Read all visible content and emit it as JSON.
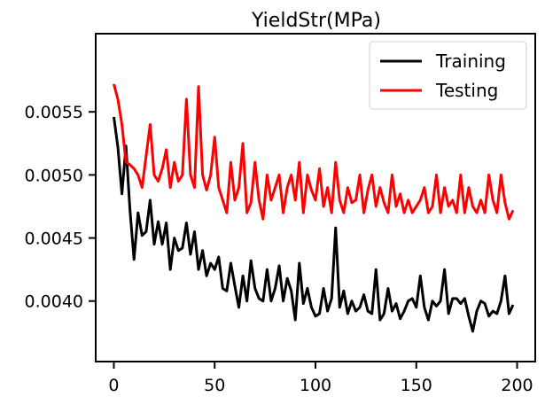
{
  "chart_data": {
    "type": "line",
    "title": "YieldStr(MPa)",
    "xlabel": "",
    "ylabel": "",
    "xlim": [
      -9,
      209
    ],
    "ylim": [
      0.00352,
      0.00612
    ],
    "xticks": [
      0,
      50,
      100,
      150,
      200
    ],
    "xtick_labels": [
      "0",
      "50",
      "100",
      "150",
      "200"
    ],
    "yticks": [
      0.004,
      0.0045,
      0.005,
      0.0055
    ],
    "ytick_labels": [
      "0.0040",
      "0.0045",
      "0.0050",
      "0.0055"
    ],
    "grid": false,
    "legend_position": "top-right",
    "series": [
      {
        "name": "Training",
        "color": "#000000",
        "x": [
          0,
          2,
          4,
          6,
          8,
          10,
          12,
          14,
          16,
          18,
          20,
          22,
          24,
          26,
          28,
          30,
          32,
          34,
          36,
          38,
          40,
          42,
          44,
          46,
          48,
          50,
          52,
          54,
          56,
          58,
          60,
          62,
          64,
          66,
          68,
          70,
          72,
          74,
          76,
          78,
          80,
          82,
          84,
          86,
          88,
          90,
          92,
          94,
          96,
          98,
          100,
          102,
          104,
          106,
          108,
          110,
          112,
          114,
          116,
          118,
          120,
          122,
          124,
          126,
          128,
          130,
          132,
          134,
          136,
          138,
          140,
          142,
          144,
          146,
          148,
          150,
          152,
          154,
          156,
          158,
          160,
          162,
          164,
          166,
          168,
          170,
          172,
          174,
          176,
          178,
          180,
          182,
          184,
          186,
          188,
          190,
          192,
          194,
          196,
          198
        ],
        "y": [
          0.00546,
          0.00522,
          0.00485,
          0.00523,
          0.00472,
          0.00433,
          0.0047,
          0.00452,
          0.00455,
          0.0048,
          0.00445,
          0.00463,
          0.00445,
          0.00462,
          0.00425,
          0.0045,
          0.0044,
          0.00442,
          0.00462,
          0.00437,
          0.00455,
          0.00425,
          0.0044,
          0.0042,
          0.0043,
          0.00425,
          0.00435,
          0.0041,
          0.00408,
          0.0043,
          0.00412,
          0.00395,
          0.0042,
          0.004,
          0.00432,
          0.0041,
          0.00402,
          0.004,
          0.00425,
          0.004,
          0.0041,
          0.00428,
          0.004,
          0.00418,
          0.00408,
          0.00385,
          0.0043,
          0.00398,
          0.0041,
          0.00395,
          0.00388,
          0.0039,
          0.0041,
          0.00392,
          0.00402,
          0.00458,
          0.00395,
          0.00408,
          0.0039,
          0.004,
          0.00392,
          0.00395,
          0.00405,
          0.00392,
          0.0039,
          0.00425,
          0.00385,
          0.0039,
          0.0041,
          0.00392,
          0.00398,
          0.00386,
          0.00392,
          0.004,
          0.00402,
          0.00395,
          0.0042,
          0.00395,
          0.00385,
          0.004,
          0.00396,
          0.004,
          0.00425,
          0.0039,
          0.00402,
          0.00402,
          0.00398,
          0.00402,
          0.00388,
          0.00376,
          0.00392,
          0.004,
          0.00398,
          0.00388,
          0.00392,
          0.0039,
          0.004,
          0.0042,
          0.0039,
          0.00397
        ]
      },
      {
        "name": "Testing",
        "color": "#ff0000",
        "x": [
          0,
          2,
          4,
          6,
          8,
          10,
          12,
          14,
          16,
          18,
          20,
          22,
          24,
          26,
          28,
          30,
          32,
          34,
          36,
          38,
          40,
          42,
          44,
          46,
          48,
          50,
          52,
          54,
          56,
          58,
          60,
          62,
          64,
          66,
          68,
          70,
          72,
          74,
          76,
          78,
          80,
          82,
          84,
          86,
          88,
          90,
          92,
          94,
          96,
          98,
          100,
          102,
          104,
          106,
          108,
          110,
          112,
          114,
          116,
          118,
          120,
          122,
          124,
          126,
          128,
          130,
          132,
          134,
          136,
          138,
          140,
          142,
          144,
          146,
          148,
          150,
          152,
          154,
          156,
          158,
          160,
          162,
          164,
          166,
          168,
          170,
          172,
          174,
          176,
          178,
          180,
          182,
          184,
          186,
          188,
          190,
          192,
          194,
          196,
          198
        ],
        "y": [
          0.00572,
          0.0056,
          0.0054,
          0.0051,
          0.00508,
          0.00505,
          0.005,
          0.0049,
          0.00515,
          0.0054,
          0.005,
          0.00495,
          0.00505,
          0.0052,
          0.0049,
          0.0051,
          0.00495,
          0.005,
          0.0056,
          0.005,
          0.0049,
          0.0057,
          0.005,
          0.00488,
          0.005,
          0.0053,
          0.0049,
          0.0048,
          0.0047,
          0.0051,
          0.0048,
          0.0049,
          0.00525,
          0.0047,
          0.00478,
          0.0051,
          0.0048,
          0.00465,
          0.005,
          0.0048,
          0.0049,
          0.005,
          0.0047,
          0.0049,
          0.005,
          0.0048,
          0.0051,
          0.0047,
          0.005,
          0.00488,
          0.0048,
          0.00505,
          0.00475,
          0.0049,
          0.0047,
          0.0051,
          0.0048,
          0.0047,
          0.0049,
          0.00478,
          0.0048,
          0.005,
          0.0047,
          0.00488,
          0.005,
          0.00475,
          0.0049,
          0.00478,
          0.0047,
          0.005,
          0.00475,
          0.00485,
          0.0047,
          0.0048,
          0.0047,
          0.00475,
          0.0048,
          0.0049,
          0.0047,
          0.00475,
          0.005,
          0.0047,
          0.0049,
          0.00475,
          0.0048,
          0.0047,
          0.005,
          0.0047,
          0.0049,
          0.00475,
          0.0047,
          0.0048,
          0.0047,
          0.005,
          0.0048,
          0.0047,
          0.005,
          0.00478,
          0.00465,
          0.00472
        ]
      }
    ]
  }
}
